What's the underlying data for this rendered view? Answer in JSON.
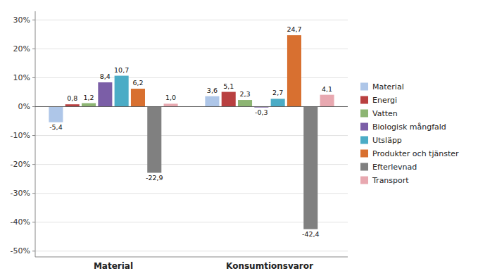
{
  "chart_data": {
    "type": "bar",
    "categories": [
      "Material",
      "Konsumtionsvaror"
    ],
    "series": [
      {
        "name": "Material",
        "color": "#aec6e8",
        "values": [
          -5.4,
          3.6
        ],
        "value_labels": [
          "-5,4",
          "3,6"
        ]
      },
      {
        "name": "Energi",
        "color": "#b94040",
        "values": [
          0.8,
          5.1
        ],
        "value_labels": [
          "0,8",
          "5,1"
        ]
      },
      {
        "name": "Vatten",
        "color": "#8db573",
        "values": [
          1.2,
          2.3
        ],
        "value_labels": [
          "1,2",
          "2,3"
        ]
      },
      {
        "name": "Biologisk mångfald",
        "color": "#7b5ea7",
        "values": [
          8.4,
          -0.3
        ],
        "value_labels": [
          "8,4",
          "-0,3"
        ]
      },
      {
        "name": "Utsläpp",
        "color": "#4bacc6",
        "values": [
          10.7,
          2.7
        ],
        "value_labels": [
          "10,7",
          "2,7"
        ]
      },
      {
        "name": "Produkter och tjänster",
        "color": "#d87030",
        "values": [
          6.2,
          24.7
        ],
        "value_labels": [
          "6,2",
          "24,7"
        ]
      },
      {
        "name": "Efterlevnad",
        "color": "#808080",
        "values": [
          -22.9,
          -42.4
        ],
        "value_labels": [
          "-22,9",
          "-42,4"
        ]
      },
      {
        "name": "Transport",
        "color": "#e8a8b0",
        "values": [
          1.0,
          4.1
        ],
        "value_labels": [
          "1,0",
          "4,1"
        ]
      }
    ],
    "ylim": [
      -52,
      33
    ],
    "yticks": [
      {
        "value": -50,
        "label": "-50%"
      },
      {
        "value": -40,
        "label": "-40%"
      },
      {
        "value": -30,
        "label": "-30%"
      },
      {
        "value": -20,
        "label": "-20%"
      },
      {
        "value": -10,
        "label": "-10%"
      },
      {
        "value": 0,
        "label": "0%"
      },
      {
        "value": 10,
        "label": "10%"
      },
      {
        "value": 20,
        "label": "20%"
      },
      {
        "value": 30,
        "label": "30%"
      }
    ],
    "grid": true,
    "data_labels": true,
    "legend": "right"
  }
}
